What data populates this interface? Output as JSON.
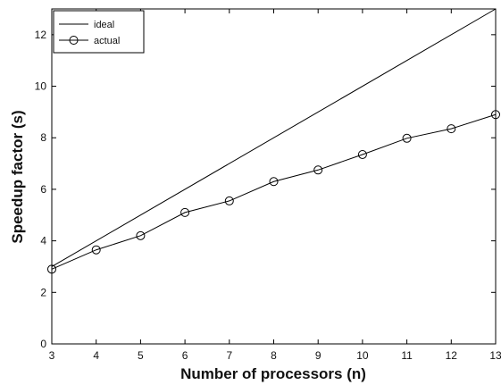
{
  "chart_data": {
    "type": "line",
    "title": "",
    "xlabel": "Number of processors (n)",
    "ylabel": "Speedup factor (s)",
    "xlim": [
      3,
      13
    ],
    "ylim": [
      0,
      13
    ],
    "x_ticks": [
      3,
      4,
      5,
      6,
      7,
      8,
      9,
      10,
      11,
      12,
      13
    ],
    "y_ticks": [
      0,
      2,
      4,
      6,
      8,
      10,
      12
    ],
    "grid": false,
    "legend_position": "top-left",
    "series": [
      {
        "name": "ideal",
        "style": "line",
        "color": "#000000",
        "x": [
          3,
          13
        ],
        "y": [
          3,
          13
        ]
      },
      {
        "name": "actual",
        "style": "line-circle-markers",
        "color": "#000000",
        "x": [
          3,
          4,
          5,
          6,
          7,
          8,
          9,
          10,
          11,
          12,
          13
        ],
        "y": [
          2.9,
          3.65,
          4.2,
          5.1,
          5.55,
          6.3,
          6.75,
          7.35,
          7.98,
          8.35,
          8.9
        ]
      }
    ]
  }
}
